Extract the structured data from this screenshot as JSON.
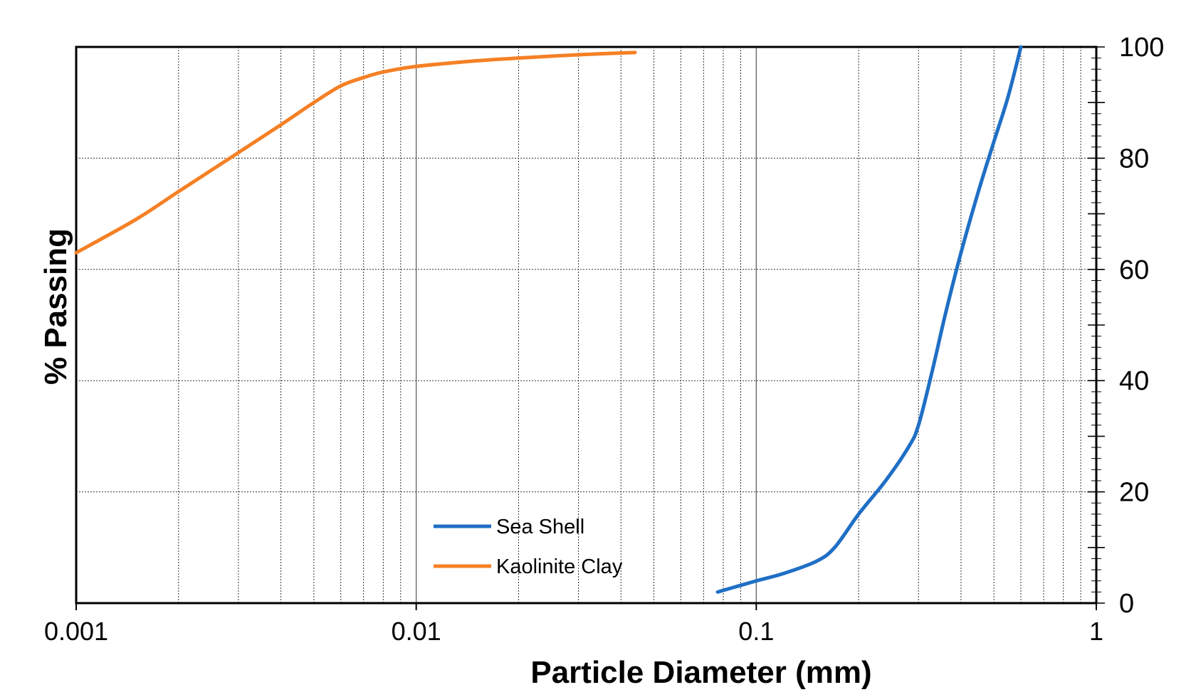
{
  "chart_data": {
    "type": "line",
    "xlabel": "Particle Diameter (mm)",
    "ylabel": "% Passing",
    "x_scale": "log",
    "xlim": [
      0.001,
      1
    ],
    "ylim": [
      0,
      100
    ],
    "x_tick_labels": [
      "0.001",
      "0.01",
      "0.1",
      "1"
    ],
    "y_tick_labels": [
      "0",
      "20",
      "40",
      "60",
      "80",
      "100"
    ],
    "grid": true,
    "legend_position": "bottom-center",
    "series": [
      {
        "name": "Sea Shell",
        "color": "#1f6fc5",
        "x": [
          0.077,
          0.1,
          0.12,
          0.15,
          0.17,
          0.2,
          0.24,
          0.28,
          0.3,
          0.33,
          0.36,
          0.4,
          0.45,
          0.5,
          0.55,
          0.6
        ],
        "y": [
          2,
          4,
          5.3,
          7.5,
          10,
          16,
          22,
          28,
          32,
          42,
          52,
          63,
          74,
          83,
          91,
          100
        ]
      },
      {
        "name": "Kaolinite Clay",
        "color": "#f58025",
        "x": [
          0.001,
          0.0015,
          0.002,
          0.003,
          0.004,
          0.005,
          0.006,
          0.007,
          0.008,
          0.01,
          0.015,
          0.02,
          0.03,
          0.044
        ],
        "y": [
          63,
          69,
          74,
          81,
          86,
          90,
          93,
          94.5,
          95.5,
          96.5,
          97.5,
          98,
          98.6,
          99
        ]
      }
    ]
  }
}
